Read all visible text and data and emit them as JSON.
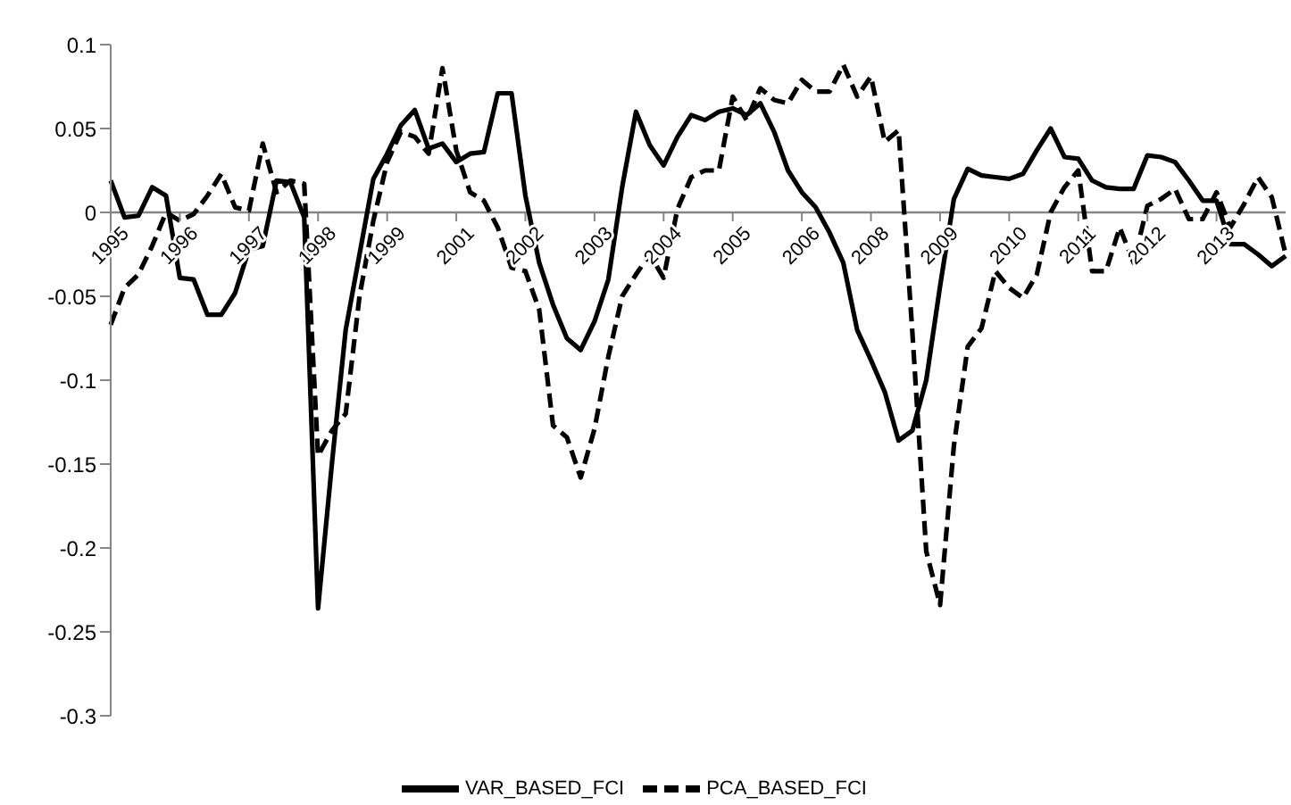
{
  "chart_data": {
    "type": "line",
    "categories": [
      "1995",
      null,
      null,
      null,
      null,
      "1996",
      null,
      null,
      null,
      null,
      "1997",
      null,
      null,
      null,
      null,
      "1998",
      null,
      null,
      null,
      null,
      "1999",
      null,
      null,
      null,
      null,
      "2001",
      null,
      null,
      null,
      null,
      "2002",
      null,
      null,
      null,
      null,
      "2003",
      null,
      null,
      null,
      null,
      "2004",
      null,
      null,
      null,
      null,
      "2005",
      null,
      null,
      null,
      null,
      "2006",
      null,
      null,
      null,
      null,
      "2008",
      null,
      null,
      null,
      null,
      "2009",
      null,
      null,
      null,
      null,
      "2010",
      null,
      null,
      null,
      null,
      "2011",
      null,
      null,
      null,
      null,
      "2012",
      null,
      null,
      null,
      null,
      "2013",
      null,
      null,
      null,
      null,
      null
    ],
    "series": [
      {
        "name": "VAR_BASED_FCI",
        "color": "#000000",
        "line_style": "solid",
        "values": [
          0.019,
          -0.003,
          -0.002,
          0.015,
          0.01,
          -0.039,
          -0.04,
          -0.061,
          -0.061,
          -0.048,
          -0.022,
          -0.02,
          0.019,
          0.018,
          -0.003,
          -0.236,
          -0.15,
          -0.07,
          -0.025,
          0.02,
          0.035,
          0.052,
          0.061,
          0.038,
          0.041,
          0.03,
          0.035,
          0.036,
          0.071,
          0.071,
          0.01,
          -0.03,
          -0.055,
          -0.075,
          -0.082,
          -0.065,
          -0.04,
          0.015,
          0.06,
          0.04,
          0.028,
          0.045,
          0.058,
          0.055,
          0.06,
          0.062,
          0.058,
          0.065,
          0.048,
          0.025,
          0.012,
          0.003,
          -0.012,
          -0.03,
          -0.07,
          -0.088,
          -0.107,
          -0.136,
          -0.13,
          -0.1,
          -0.044,
          0.008,
          0.026,
          0.022,
          0.021,
          0.02,
          0.023,
          0.037,
          0.05,
          0.033,
          0.032,
          0.019,
          0.015,
          0.014,
          0.014,
          0.034,
          0.033,
          0.03,
          0.019,
          0.007,
          0.007,
          -0.019,
          -0.019,
          -0.025,
          -0.032,
          -0.026
        ]
      },
      {
        "name": "PCA_BASED_FCI",
        "color": "#000000",
        "line_style": "dashed",
        "values": [
          -0.067,
          -0.045,
          -0.037,
          -0.02,
          0.0,
          -0.005,
          -0.001,
          0.01,
          0.023,
          0.003,
          0.001,
          0.041,
          0.012,
          0.019,
          0.017,
          -0.145,
          -0.13,
          -0.12,
          -0.05,
          -0.005,
          0.03,
          0.048,
          0.045,
          0.035,
          0.086,
          0.037,
          0.012,
          0.007,
          -0.009,
          -0.033,
          -0.035,
          -0.058,
          -0.127,
          -0.134,
          -0.158,
          -0.129,
          -0.086,
          -0.05,
          -0.037,
          -0.025,
          -0.039,
          0.002,
          0.021,
          0.025,
          0.025,
          0.069,
          0.055,
          0.074,
          0.067,
          0.065,
          0.079,
          0.072,
          0.072,
          0.088,
          0.069,
          0.081,
          0.042,
          0.049,
          -0.072,
          -0.202,
          -0.234,
          -0.139,
          -0.08,
          -0.069,
          -0.035,
          -0.045,
          -0.051,
          -0.037,
          0.0,
          0.015,
          0.025,
          -0.035,
          -0.035,
          -0.009,
          -0.03,
          0.004,
          0.008,
          0.014,
          -0.004,
          -0.004,
          0.012,
          -0.009,
          0.005,
          0.021,
          0.009,
          -0.025
        ]
      }
    ],
    "ylim": [
      -0.3,
      0.1
    ],
    "yticks": [
      -0.3,
      -0.25,
      -0.2,
      -0.15,
      -0.1,
      -0.05,
      0,
      0.05,
      0.1
    ],
    "grid": false,
    "legend": "bottom",
    "marker": "none"
  }
}
